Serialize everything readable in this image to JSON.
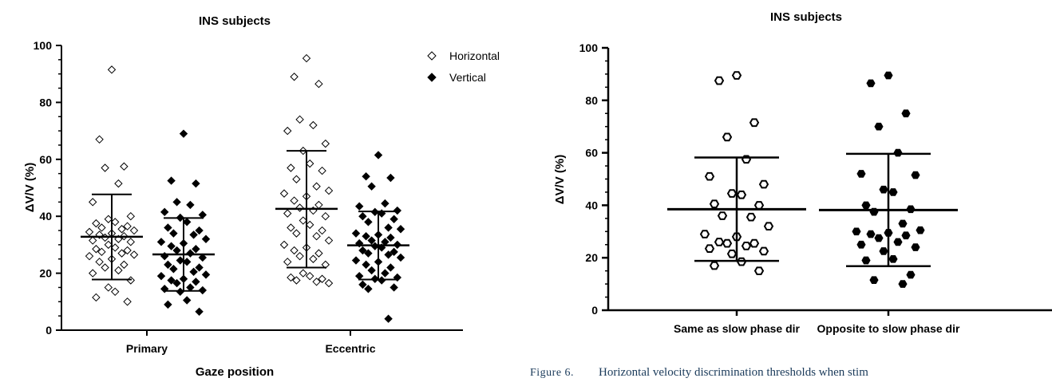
{
  "chart_data": [
    {
      "type": "scatter",
      "title": "INS subjects",
      "xlabel": "Gaze position",
      "ylabel": "ΔV/V (%)",
      "ylim": [
        0,
        100
      ],
      "yticks": [
        0,
        20,
        40,
        60,
        80,
        100
      ],
      "categories": [
        "Primary",
        "Eccentric"
      ],
      "legend": {
        "position": "top-right"
      },
      "series": [
        {
          "name": "Horizontal",
          "marker": "open-diamond",
          "groups": [
            {
              "category": "Primary",
              "mean": 32.8,
              "sd_low": 17.8,
              "sd_high": 47.7,
              "values": [
                91.5,
                67,
                57.5,
                57,
                51.5,
                45,
                40,
                39,
                38,
                37.5,
                36.5,
                36,
                35.5,
                35,
                34.5,
                34,
                33.5,
                33,
                32.5,
                32,
                31.5,
                31,
                30,
                29,
                28.5,
                28,
                27.5,
                27,
                26.5,
                26,
                25,
                24,
                23,
                22,
                21,
                20,
                17.5,
                15,
                13.5,
                11.5,
                10
              ]
            },
            {
              "category": "Eccentric",
              "mean": 42.6,
              "sd_low": 22,
              "sd_high": 63,
              "values": [
                95.5,
                89,
                86.5,
                74,
                72,
                70,
                65.5,
                63,
                58.5,
                57,
                56,
                53,
                50.5,
                49,
                48,
                47,
                45.5,
                44,
                43,
                42,
                41,
                40,
                38.5,
                37,
                36,
                35,
                34,
                33,
                31.5,
                30,
                29,
                28,
                27,
                26,
                25,
                24,
                23,
                20,
                19,
                18.5,
                18,
                17.5,
                17,
                16.5
              ]
            }
          ]
        },
        {
          "name": "Vertical",
          "marker": "filled-diamond",
          "groups": [
            {
              "category": "Primary",
              "mean": 26.6,
              "sd_low": 13.8,
              "sd_high": 39.4,
              "values": [
                69,
                52.5,
                51.5,
                45,
                44,
                41.5,
                40.5,
                39.5,
                38,
                36,
                35,
                34,
                33.5,
                32,
                31,
                30.5,
                29.5,
                28.5,
                28,
                27,
                26,
                25.5,
                24.5,
                24,
                23,
                22,
                21.5,
                20.5,
                19.5,
                19,
                18,
                17.5,
                17,
                16.5,
                15,
                14.5,
                14,
                13.5,
                10.5,
                9,
                6.5
              ]
            },
            {
              "category": "Eccentric",
              "mean": 29.8,
              "sd_low": 17.8,
              "sd_high": 41.7,
              "values": [
                61.5,
                54,
                53.5,
                50.5,
                44.5,
                43.5,
                42,
                41.5,
                41,
                40,
                39,
                38,
                36,
                35.5,
                34,
                33.5,
                33,
                32.5,
                31.5,
                31,
                30.5,
                30,
                29.5,
                29,
                28,
                27.5,
                27,
                26.5,
                25.5,
                24.5,
                24,
                23,
                22,
                21,
                20,
                19,
                18.5,
                18,
                17.5,
                16,
                15,
                14.5,
                4
              ]
            }
          ]
        }
      ]
    },
    {
      "type": "scatter",
      "title": "INS subjects",
      "xlabel": "",
      "ylabel": "ΔV/V (%)",
      "ylim": [
        0,
        100
      ],
      "yticks": [
        0,
        20,
        40,
        60,
        80,
        100
      ],
      "categories": [
        "Same as slow phase dir",
        "Opposite to slow phase dir"
      ],
      "series": [
        {
          "category": "Same as slow phase dir",
          "marker": "open-hexagon",
          "mean": 38.5,
          "sd_low": 18.8,
          "sd_high": 58.2,
          "values": [
            89.5,
            87.5,
            71.5,
            66,
            57.5,
            51,
            48,
            44.5,
            44,
            40.5,
            40,
            36,
            35.5,
            32,
            29,
            28,
            26,
            25.5,
            25.5,
            24.5,
            23.5,
            22.5,
            21.5,
            18.5,
            17,
            15
          ]
        },
        {
          "category": "Opposite to slow phase dir",
          "marker": "filled-hexagon",
          "mean": 38.2,
          "sd_low": 16.8,
          "sd_high": 59.6,
          "values": [
            89.5,
            86.5,
            75,
            70,
            60,
            52,
            51.5,
            46,
            45,
            40,
            38.5,
            37.5,
            33,
            30.5,
            30,
            29.5,
            29,
            28.5,
            27.5,
            26,
            25,
            24,
            22.5,
            19.5,
            19,
            13.5,
            11.5,
            10
          ]
        }
      ]
    }
  ],
  "caption": {
    "label": "Figure 6.",
    "text": "Horizontal velocity discrimination thresholds when stim"
  }
}
